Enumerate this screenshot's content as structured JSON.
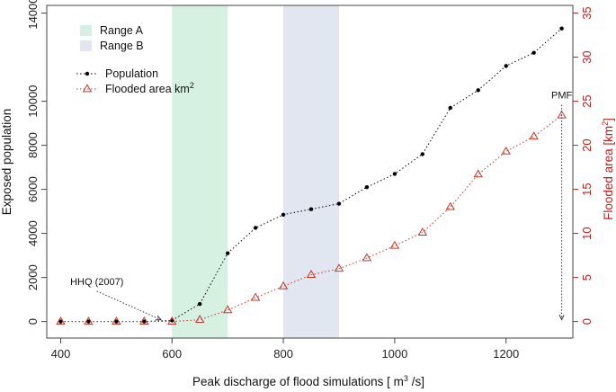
{
  "chart_data": {
    "type": "line",
    "xlabel": "Peak discharge of flood simulations [ m",
    "xlabel_sup": "3",
    "xlabel_end": " /s]",
    "ylabel": "Exposed population",
    "ylabel2": "Flooded area [km",
    "ylabel2_sup": "2",
    "ylabel2_end": "]",
    "xlim": [
      375,
      1320
    ],
    "ylim": [
      -750,
      14350
    ],
    "ylim2": [
      -1.875,
      35.875
    ],
    "xticks": [
      400,
      600,
      800,
      1000,
      1200
    ],
    "yticks": [
      0,
      2000,
      4000,
      6000,
      8000,
      10000,
      14000
    ],
    "yticks2": [
      0,
      5,
      10,
      15,
      20,
      25,
      30,
      35
    ],
    "ranges": [
      {
        "name": "Range A",
        "from": 600,
        "to": 700,
        "color": "#d6f0e2"
      },
      {
        "name": "Range B",
        "from": 800,
        "to": 900,
        "color": "#e2e6f0"
      }
    ],
    "x": [
      400,
      450,
      500,
      550,
      600,
      650,
      700,
      750,
      800,
      850,
      900,
      950,
      1000,
      1050,
      1100,
      1150,
      1200,
      1250,
      1300
    ],
    "series": [
      {
        "name": "Population",
        "axis": "left",
        "color": "#000000",
        "marker": "dot",
        "values": [
          0,
          0,
          0,
          0,
          50,
          800,
          3100,
          4250,
          4850,
          5100,
          5350,
          6100,
          6700,
          7600,
          9700,
          10500,
          11600,
          12200,
          13300
        ]
      },
      {
        "name": "Flooded area km",
        "name_sup": "2",
        "axis": "right",
        "color": "#c0392b",
        "marker": "triangle",
        "values": [
          0,
          0,
          0,
          0,
          0,
          0.2,
          1.3,
          2.7,
          4.0,
          5.3,
          6.0,
          7.2,
          8.6,
          10.1,
          13.0,
          16.7,
          19.3,
          21.0,
          23.4
        ]
      }
    ],
    "annotations": [
      {
        "text": "HHQ (2007)",
        "x": 580,
        "y": 0,
        "label_x": 465,
        "label_y": 0.84
      },
      {
        "text": "PMF",
        "x": 1300,
        "y": 0,
        "label_x": 1300,
        "label_y": 0.28
      }
    ]
  }
}
